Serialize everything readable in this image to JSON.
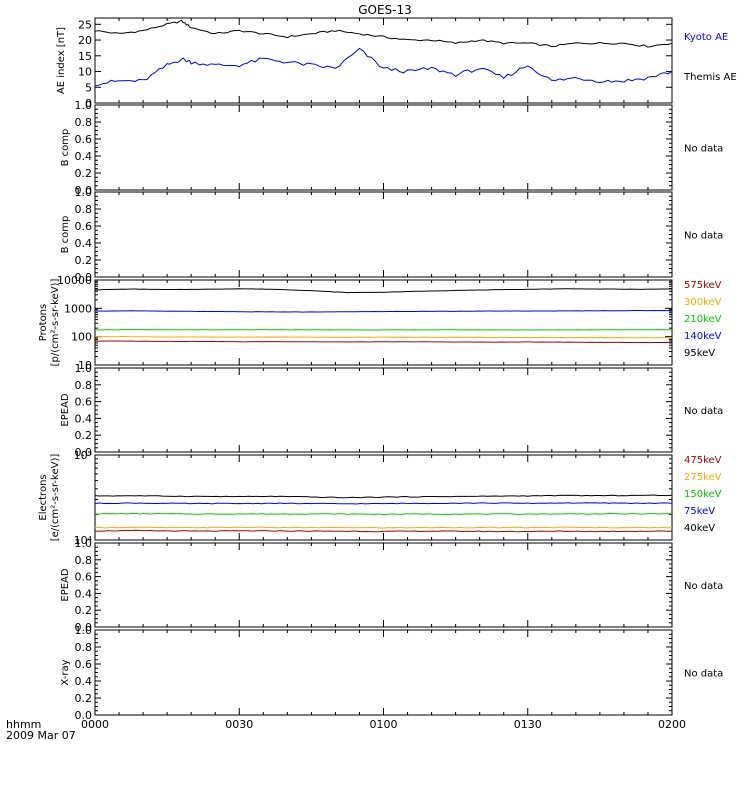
{
  "title": "GOES-13",
  "bottom_label_line1": "hhmm",
  "bottom_label_line2": "2009 Mar 07",
  "x_ticks": [
    "0000",
    "0030",
    "0100",
    "0130",
    "0200"
  ],
  "colors": {
    "black": "#000000",
    "blue": "#0000ff",
    "red": "#aa0000",
    "orange": "#ffaa00",
    "green": "#00cc00"
  },
  "chart_data": [
    {
      "type": "line",
      "panel": "ae",
      "ylabel": "AE index [nT]",
      "ylim": [
        0,
        27
      ],
      "yticks": [
        0,
        5,
        10,
        15,
        20,
        25
      ],
      "x_minutes": [
        0,
        5,
        10,
        15,
        18,
        20,
        25,
        30,
        35,
        40,
        45,
        50,
        55,
        60,
        65,
        70,
        75,
        80,
        85,
        90,
        95,
        100,
        105,
        110,
        115,
        120
      ],
      "series": [
        {
          "name": "Kyoto AE",
          "color": "blue",
          "values": [
            23,
            22,
            23,
            25,
            26,
            24,
            22,
            23,
            22,
            21,
            22,
            23,
            22,
            21,
            20,
            20,
            19,
            20,
            19,
            19,
            18,
            19,
            19,
            19,
            18,
            19
          ]
        },
        {
          "name": "Themis AE",
          "color": "black",
          "values": [
            6,
            7,
            7,
            12,
            14,
            13,
            12,
            12,
            14,
            13,
            12,
            11,
            17,
            11,
            10,
            11,
            9,
            11,
            8,
            12,
            7,
            8,
            7,
            7,
            8,
            10
          ]
        }
      ]
    },
    {
      "type": "line",
      "panel": "empty",
      "ylabel": "B comp",
      "ylim": [
        0,
        1
      ],
      "note": "No data"
    },
    {
      "type": "line",
      "panel": "empty",
      "ylabel": "B comp",
      "ylim": [
        0,
        1
      ],
      "note": "No data"
    },
    {
      "type": "line",
      "panel": "log",
      "ylabel_line1": "Protons",
      "ylabel_line2": "[p/(cm²-s-sr-keV)]",
      "yscale": "log",
      "ylim": [
        10,
        10000
      ],
      "yticks": [
        10,
        100,
        1000,
        10000
      ],
      "series": [
        {
          "name": "575keV",
          "color": "red",
          "values": [
            70,
            70,
            68,
            68,
            66,
            67,
            66,
            65,
            66,
            66,
            65,
            64,
            65,
            64,
            63,
            62,
            62
          ]
        },
        {
          "name": "300keV",
          "color": "orange",
          "values": [
            100,
            100,
            98,
            97,
            96,
            97,
            96,
            95,
            96,
            95,
            95,
            94,
            94,
            93,
            93,
            92,
            92
          ]
        },
        {
          "name": "210keV",
          "color": "green",
          "values": [
            175,
            176,
            175,
            174,
            175,
            176,
            175,
            174,
            173,
            174,
            175,
            174,
            173,
            174,
            175,
            176,
            175
          ]
        },
        {
          "name": "140keV",
          "color": "blue",
          "values": [
            800,
            820,
            790,
            780,
            760,
            750,
            740,
            760,
            770,
            780,
            790,
            800,
            800,
            810,
            820,
            830,
            840
          ]
        },
        {
          "name": "95keV",
          "color": "black",
          "values": [
            4500,
            4800,
            4600,
            4700,
            4900,
            4700,
            4200,
            3600,
            3700,
            4000,
            4300,
            4500,
            4700,
            4900,
            4800,
            4700,
            4800
          ]
        }
      ]
    },
    {
      "type": "line",
      "panel": "empty",
      "ylabel": "EPEAD",
      "ylim": [
        0,
        1
      ],
      "note": "No data"
    },
    {
      "type": "line",
      "panel": "log",
      "ylabel_line1": "Electrons",
      "ylabel_line2": "[e/(cm²-s-sr-keV)]",
      "yscale": "log",
      "ylim": [
        10000,
        100000
      ],
      "yticks": [
        10000,
        100000
      ],
      "ytick_labels": [
        "10⁴",
        "10⁵"
      ],
      "series": [
        {
          "name": "475keV",
          "color": "red",
          "values": [
            12800,
            12900,
            12800,
            12700,
            12800,
            12800,
            12700,
            12700,
            12600,
            12700,
            12700,
            12600,
            12600,
            12700,
            12600,
            12700,
            12700
          ]
        },
        {
          "name": "275keV",
          "color": "orange",
          "values": [
            14000,
            14100,
            14000,
            14000,
            14100,
            14000,
            14000,
            14000,
            13900,
            14000,
            14000,
            14000,
            14000,
            14100,
            14000,
            14000,
            14000
          ]
        },
        {
          "name": "150keV",
          "color": "green",
          "values": [
            20300,
            20400,
            20300,
            20200,
            20300,
            20200,
            20300,
            20200,
            20100,
            20200,
            20200,
            20200,
            20200,
            20300,
            20300,
            20300,
            20300
          ]
        },
        {
          "name": "75keV",
          "color": "blue",
          "values": [
            27000,
            27200,
            27000,
            26800,
            26900,
            27000,
            26800,
            26700,
            26800,
            27000,
            27100,
            27200,
            27000,
            27300,
            27200,
            27100,
            27100
          ]
        },
        {
          "name": "40keV",
          "color": "black",
          "values": [
            33000,
            33200,
            32800,
            32600,
            32400,
            32600,
            32000,
            31500,
            32000,
            32300,
            32500,
            32800,
            33000,
            33400,
            33200,
            33500,
            33600
          ]
        }
      ]
    },
    {
      "type": "line",
      "panel": "empty",
      "ylabel": "EPEAD",
      "ylim": [
        0,
        1
      ],
      "note": "No data"
    },
    {
      "type": "line",
      "panel": "empty",
      "ylabel": "X-ray",
      "ylim": [
        0,
        1
      ],
      "note": "No data"
    }
  ]
}
